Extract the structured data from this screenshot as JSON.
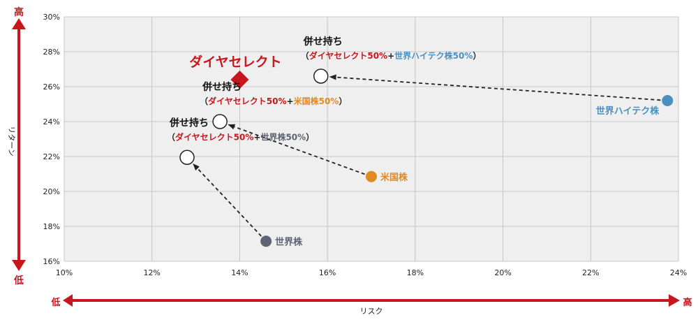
{
  "chart_data": {
    "type": "scatter",
    "xlabel": "リスク",
    "ylabel": "リターン",
    "xlim": [
      10,
      24
    ],
    "ylim": [
      16,
      30
    ],
    "x_ticks": [
      "10%",
      "12%",
      "14%",
      "16%",
      "18%",
      "20%",
      "22%",
      "24%"
    ],
    "y_ticks": [
      "16%",
      "18%",
      "20%",
      "22%",
      "24%",
      "26%",
      "28%",
      "30%"
    ],
    "x_low": "低",
    "x_high": "高",
    "y_low": "低",
    "y_high": "高",
    "grid": true,
    "colors": {
      "red": "#c8161d",
      "blue": "#4a90c0",
      "orange": "#e08a24",
      "gray": "#5f6475",
      "plot_bg": "#efefef",
      "grid": "#bdbdbd"
    },
    "points": [
      {
        "id": "dia",
        "label": "ダイヤセレクト",
        "x": 14.0,
        "y": 26.4,
        "marker": "diamond",
        "color": "#c8161d"
      },
      {
        "id": "world-tech",
        "label": "世界ハイテク株",
        "x": 23.75,
        "y": 25.2,
        "marker": "dot",
        "color": "#4a90c0"
      },
      {
        "id": "us",
        "label": "米国株",
        "x": 17.0,
        "y": 20.85,
        "marker": "dot",
        "color": "#e08a24"
      },
      {
        "id": "world",
        "label": "世界株",
        "x": 14.6,
        "y": 17.15,
        "marker": "dot",
        "color": "#5f6475"
      },
      {
        "id": "combo-tech",
        "x": 15.85,
        "y": 26.6,
        "marker": "circle",
        "title": "併せ持ち",
        "parts": [
          {
            "text": "（",
            "color": "#222222"
          },
          {
            "text": "ダイヤセレクト50%",
            "color": "#c8161d"
          },
          {
            "text": "+",
            "color": "#222222"
          },
          {
            "text": "世界ハイテク株50%",
            "color": "#4a90c0"
          },
          {
            "text": "）",
            "color": "#222222"
          }
        ]
      },
      {
        "id": "combo-us",
        "x": 13.55,
        "y": 24.0,
        "marker": "circle",
        "title": "併せ持ち",
        "parts": [
          {
            "text": "（",
            "color": "#222222"
          },
          {
            "text": "ダイヤセレクト50%",
            "color": "#c8161d"
          },
          {
            "text": "+",
            "color": "#222222"
          },
          {
            "text": "米国株50%",
            "color": "#e08a24"
          },
          {
            "text": "）",
            "color": "#222222"
          }
        ]
      },
      {
        "id": "combo-world",
        "x": 12.8,
        "y": 21.95,
        "marker": "circle",
        "title": "併せ持ち",
        "parts": [
          {
            "text": "（",
            "color": "#222222"
          },
          {
            "text": "ダイヤセレクト50%",
            "color": "#c8161d"
          },
          {
            "text": "+",
            "color": "#222222"
          },
          {
            "text": "世界株50%",
            "color": "#5f6475"
          },
          {
            "text": "）",
            "color": "#222222"
          }
        ]
      }
    ],
    "arrows": [
      {
        "from": "world-tech",
        "to": "combo-tech"
      },
      {
        "from": "us",
        "to": "combo-us"
      },
      {
        "from": "world",
        "to": "combo-world"
      }
    ]
  }
}
